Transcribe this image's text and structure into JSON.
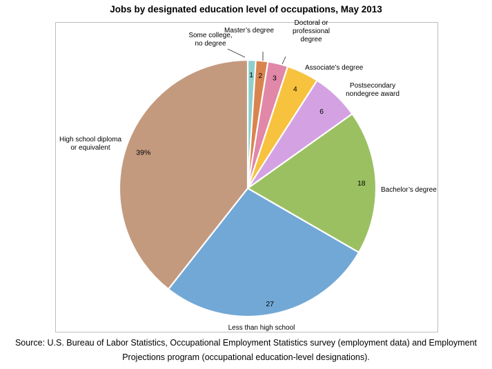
{
  "chart_data": {
    "type": "pie",
    "title": "Jobs by designated education level of occupations, May 2013",
    "slices": [
      {
        "category": "Some college, no degree",
        "value": 1,
        "label": "1",
        "color": "#8ecfcc"
      },
      {
        "category": "Master’s degree",
        "value": 1.5,
        "label": "2",
        "color": "#d9844f"
      },
      {
        "category": "Doctoral or professional degree",
        "value": 2.5,
        "label": "3",
        "color": "#e187a7"
      },
      {
        "category": "Associate’s degree",
        "value": 4,
        "label": "4",
        "color": "#f7c23e"
      },
      {
        "category": "Postsecondary nondegree award",
        "value": 6,
        "label": "6",
        "color": "#d4a2e2"
      },
      {
        "category": "Bachelor’s degree",
        "value": 18,
        "label": "18",
        "color": "#9bc062"
      },
      {
        "category": "Less than high school",
        "value": 27,
        "label": "27",
        "color": "#72a8d6"
      },
      {
        "category": "High school diploma or equivalent",
        "value": 39,
        "label": "39%",
        "color": "#c49a7f"
      }
    ],
    "category_label_lines": [
      [
        "Some college,",
        "no degree"
      ],
      [
        "Master’s degree"
      ],
      [
        "Doctoral or",
        "professional",
        "degree"
      ],
      [
        "Associate’s degree"
      ],
      [
        "Postsecondary",
        "nondegree award"
      ],
      [
        "Bachelor’s degree"
      ],
      [
        "Less than high school"
      ],
      [
        "High school diploma",
        "or equivalent"
      ]
    ]
  },
  "source": {
    "line1": "Source: U.S. Bureau of Labor Statistics, Occupational Employment Statistics survey (employment data) and Employment",
    "line2": "Projections program (occupational education-level designations)."
  }
}
